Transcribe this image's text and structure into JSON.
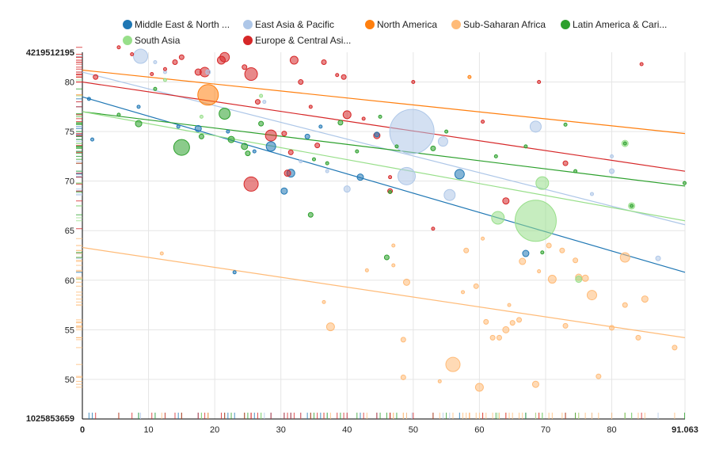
{
  "chart_data": {
    "type": "scatter",
    "title": "",
    "xlabel": "",
    "ylabel": "",
    "xlim": [
      0,
      91.063
    ],
    "ylim": [
      46,
      83
    ],
    "x_ticks": [
      "10",
      "20",
      "30",
      "40",
      "50",
      "60",
      "70",
      "80"
    ],
    "y_ticks": [
      "50",
      "55",
      "60",
      "65",
      "70",
      "75",
      "80"
    ],
    "x_min_label": "0",
    "x_max_label": "91.063",
    "y_min_label": "1025853659",
    "y_max_label": "4219512195",
    "grid": true,
    "legend_position": "top",
    "series": [
      {
        "name": "Middle East & North ...",
        "color": "#1f77b4",
        "trend": [
          [
            0,
            78.5
          ],
          [
            91.063,
            60.8
          ]
        ],
        "points": [
          [
            1,
            78.3
          ],
          [
            1.5,
            74.2
          ],
          [
            8.5,
            77.5
          ],
          [
            14.5,
            75.5
          ],
          [
            17.5,
            75.3
          ],
          [
            22,
            75
          ],
          [
            28.5,
            73.5
          ],
          [
            30.5,
            69
          ],
          [
            31.5,
            70.8
          ],
          [
            34,
            74.5
          ],
          [
            42,
            70.4
          ],
          [
            44.5,
            74.7
          ],
          [
            57,
            70.7
          ],
          [
            67,
            62.7
          ],
          [
            26,
            73
          ],
          [
            36,
            75.5
          ],
          [
            23,
            60.8
          ]
        ],
        "sizes": [
          2,
          2,
          2,
          2,
          4,
          2,
          6,
          4,
          5,
          3,
          4,
          3,
          6,
          4,
          2,
          2,
          2
        ]
      },
      {
        "name": "East Asia & Pacific",
        "color": "#aec7e8",
        "trend": [
          [
            0,
            81
          ],
          [
            91.063,
            65.6
          ]
        ],
        "points": [
          [
            8.8,
            82.6
          ],
          [
            11,
            82
          ],
          [
            12.5,
            81
          ],
          [
            19,
            81
          ],
          [
            27.5,
            78
          ],
          [
            40,
            69.2
          ],
          [
            49.8,
            75
          ],
          [
            49,
            70.5
          ],
          [
            54.5,
            74
          ],
          [
            55.5,
            68.6
          ],
          [
            68.5,
            75.5
          ],
          [
            80,
            71
          ],
          [
            80,
            72.5
          ],
          [
            87,
            62.2
          ],
          [
            77,
            68.7
          ],
          [
            33,
            72
          ],
          [
            37,
            71
          ]
        ],
        "sizes": [
          9,
          2,
          2,
          3,
          2,
          4,
          28,
          11,
          6,
          7,
          7,
          3,
          2,
          3,
          2,
          2,
          2
        ]
      },
      {
        "name": "North America",
        "color": "#ff7f0e",
        "trend": [
          [
            0,
            81.2
          ],
          [
            91.063,
            74.8
          ]
        ],
        "points": [
          [
            19,
            78.7
          ],
          [
            58.5,
            80.5
          ]
        ],
        "sizes": [
          13,
          2
        ]
      },
      {
        "name": "Sub-Saharan Africa",
        "color": "#ffbb78",
        "trend": [
          [
            0,
            63.3
          ],
          [
            91.063,
            54.2
          ]
        ],
        "points": [
          [
            36.5,
            57.8
          ],
          [
            37.5,
            55.3
          ],
          [
            43,
            61
          ],
          [
            47,
            61.5
          ],
          [
            48.5,
            54
          ],
          [
            48.5,
            50.2
          ],
          [
            49,
            59.8
          ],
          [
            56,
            51.5
          ],
          [
            57.5,
            58.8
          ],
          [
            58,
            63
          ],
          [
            59.5,
            59.4
          ],
          [
            60,
            49.2
          ],
          [
            61,
            55.8
          ],
          [
            62,
            54.2
          ],
          [
            63,
            54.2
          ],
          [
            64,
            55
          ],
          [
            65,
            55.7
          ],
          [
            66,
            56
          ],
          [
            66.5,
            61.9
          ],
          [
            68.5,
            49.5
          ],
          [
            71,
            60.1
          ],
          [
            72.5,
            63
          ],
          [
            73,
            55.4
          ],
          [
            75,
            60.3
          ],
          [
            76,
            60.2
          ],
          [
            77,
            58.5
          ],
          [
            78,
            50.3
          ],
          [
            80,
            55.2
          ],
          [
            82,
            62.3
          ],
          [
            82,
            57.5
          ],
          [
            84,
            54.2
          ],
          [
            85,
            58.1
          ],
          [
            89.5,
            53.2
          ],
          [
            60.5,
            64.2
          ],
          [
            70.5,
            63.5
          ],
          [
            74.5,
            62
          ],
          [
            12,
            62.7
          ],
          [
            54,
            49.8
          ],
          [
            64.5,
            57.5
          ],
          [
            47,
            63.5
          ],
          [
            69,
            60.9
          ]
        ],
        "sizes": [
          2,
          5,
          2,
          2,
          3,
          3,
          4,
          9,
          2,
          3,
          3,
          5,
          3,
          3,
          3,
          4,
          3,
          3,
          4,
          4,
          5,
          3,
          3,
          4,
          4,
          6,
          3,
          3,
          6,
          3,
          3,
          4,
          3,
          2,
          3,
          3,
          2,
          2,
          2,
          2,
          2
        ]
      },
      {
        "name": "Latin America & Cari...",
        "color": "#2ca02c",
        "trend": [
          [
            0,
            77
          ],
          [
            91.063,
            69.5
          ]
        ],
        "points": [
          [
            5.5,
            76.7
          ],
          [
            8.5,
            75.8
          ],
          [
            11,
            79.3
          ],
          [
            15,
            73.4
          ],
          [
            18,
            74.5
          ],
          [
            21.5,
            76.8
          ],
          [
            22.5,
            74.2
          ],
          [
            24.5,
            73.5
          ],
          [
            25,
            72.8
          ],
          [
            27,
            75.8
          ],
          [
            34.5,
            66.6
          ],
          [
            35,
            72.2
          ],
          [
            37,
            71.8
          ],
          [
            39,
            75.9
          ],
          [
            45,
            76.5
          ],
          [
            46,
            62.3
          ],
          [
            46.5,
            68.9
          ],
          [
            47.5,
            73.5
          ],
          [
            53,
            73.3
          ],
          [
            55,
            75
          ],
          [
            62.5,
            72.5
          ],
          [
            67,
            73.5
          ],
          [
            69.5,
            62.8
          ],
          [
            73,
            75.7
          ],
          [
            74.5,
            71
          ],
          [
            82,
            73.8
          ],
          [
            83,
            67.5
          ],
          [
            91,
            69.8
          ],
          [
            41.5,
            73
          ]
        ],
        "sizes": [
          2,
          4,
          2,
          10,
          3,
          7,
          4,
          4,
          3,
          3,
          3,
          2,
          2,
          3,
          2,
          3,
          2,
          2,
          3,
          2,
          2,
          2,
          2,
          2,
          2,
          2,
          2,
          2,
          2
        ]
      },
      {
        "name": "South Asia",
        "color": "#98df8a",
        "trend": [
          [
            0,
            77
          ],
          [
            91.063,
            66
          ]
        ],
        "points": [
          [
            12.5,
            80.2
          ],
          [
            27,
            78.6
          ],
          [
            62.8,
            66.3
          ],
          [
            68.5,
            66
          ],
          [
            69.5,
            69.8
          ],
          [
            75,
            60.1
          ],
          [
            83,
            67.5
          ],
          [
            82,
            73.8
          ],
          [
            18,
            76.5
          ]
        ],
        "sizes": [
          2,
          2,
          8,
          26,
          8,
          4,
          4,
          4,
          2
        ]
      },
      {
        "name": "Europe & Central Asi...",
        "color": "#d62728",
        "trend": [
          [
            0,
            80
          ],
          [
            91.063,
            71
          ]
        ],
        "points": [
          [
            5.5,
            83.5
          ],
          [
            7.5,
            82.8
          ],
          [
            10.5,
            80.8
          ],
          [
            12.5,
            81.3
          ],
          [
            14,
            82
          ],
          [
            15,
            82.5
          ],
          [
            18.5,
            81
          ],
          [
            21.5,
            82.5
          ],
          [
            21,
            82.2
          ],
          [
            24.5,
            81.5
          ],
          [
            25.5,
            80.8
          ],
          [
            26.5,
            78
          ],
          [
            28.5,
            74.6
          ],
          [
            30.5,
            74.8
          ],
          [
            31.5,
            72.9
          ],
          [
            32,
            82.2
          ],
          [
            33,
            80
          ],
          [
            34.5,
            77.5
          ],
          [
            35.5,
            73.6
          ],
          [
            36.5,
            82
          ],
          [
            38.5,
            80.7
          ],
          [
            39.5,
            80.5
          ],
          [
            40,
            76.7
          ],
          [
            42.5,
            76.3
          ],
          [
            44.5,
            74.6
          ],
          [
            46.5,
            70.4
          ],
          [
            46.5,
            69
          ],
          [
            50,
            80
          ],
          [
            53,
            65.2
          ],
          [
            60.5,
            76
          ],
          [
            64,
            68
          ],
          [
            69,
            80
          ],
          [
            73,
            71.8
          ],
          [
            84.5,
            81.8
          ],
          [
            25.5,
            69.7
          ],
          [
            31,
            70.8
          ],
          [
            2,
            80.5
          ],
          [
            17.5,
            81
          ]
        ],
        "sizes": [
          2,
          2,
          2,
          2,
          3,
          3,
          6,
          6,
          5,
          3,
          8,
          3,
          7,
          3,
          3,
          5,
          3,
          2,
          3,
          3,
          2,
          3,
          5,
          2,
          4,
          2,
          3,
          2,
          2,
          2,
          4,
          2,
          3,
          2,
          9,
          4,
          3,
          4
        ]
      }
    ]
  }
}
